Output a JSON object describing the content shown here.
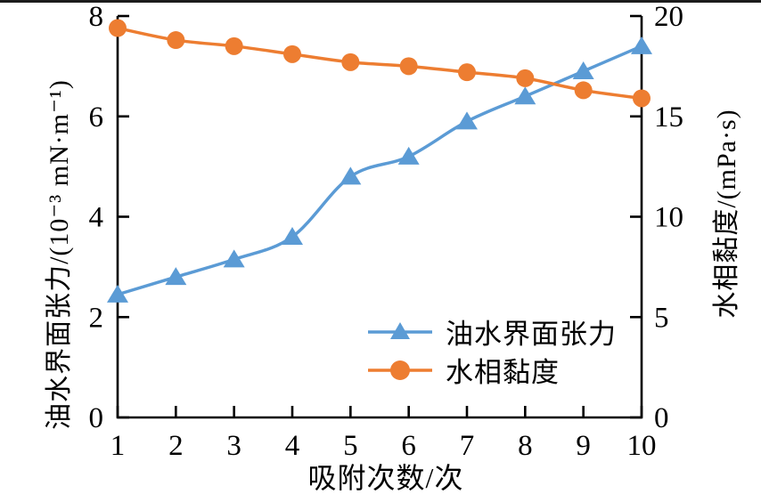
{
  "figure": {
    "background": "#ffffff",
    "top_rule_color": "#1c1c1c",
    "axis_color": "#000000",
    "text_color": "#000000"
  },
  "chart_data": {
    "type": "line",
    "title": "",
    "xlabel": "吸附次数/次",
    "x": [
      1,
      2,
      3,
      4,
      5,
      6,
      7,
      8,
      9,
      10
    ],
    "x_tick_labels": [
      "1",
      "2",
      "3",
      "4",
      "5",
      "6",
      "7",
      "8",
      "9",
      "10"
    ],
    "left_axis": {
      "label": "油水界面张力/(10⁻³ mN·m⁻¹)",
      "min": 0,
      "max": 8,
      "ticks": [
        0,
        2,
        4,
        6,
        8
      ]
    },
    "right_axis": {
      "label": "水相黏度/(mPa·s)",
      "min": 0,
      "max": 20,
      "ticks": [
        0,
        5,
        10,
        15,
        20
      ]
    },
    "grid": false,
    "legend_position": "inside-bottom-right",
    "series": [
      {
        "name": "油水界面张力",
        "axis": "left",
        "marker": "triangle",
        "color": "#5B9BD5",
        "values": [
          2.45,
          2.8,
          3.15,
          3.6,
          4.8,
          5.2,
          5.9,
          6.4,
          6.9,
          7.4
        ]
      },
      {
        "name": "水相黏度",
        "axis": "right",
        "marker": "circle",
        "color": "#ED7D31",
        "values": [
          19.4,
          18.8,
          18.5,
          18.1,
          17.7,
          17.5,
          17.2,
          16.9,
          16.3,
          15.9
        ]
      }
    ]
  }
}
